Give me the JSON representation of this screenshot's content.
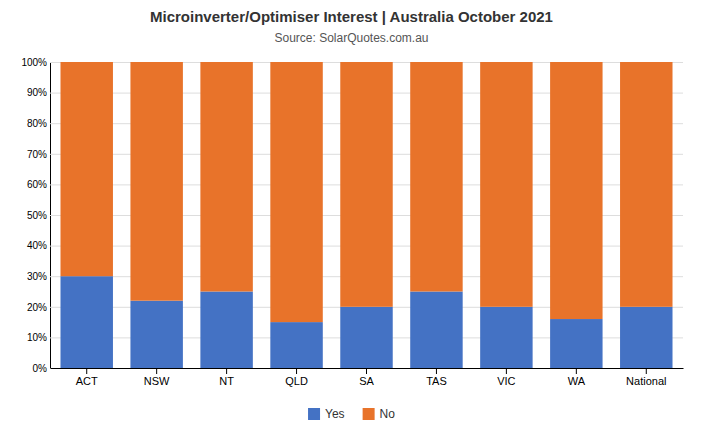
{
  "chart_data": {
    "type": "bar",
    "title": "Microinverter/Optimiser Interest | Australia October 2021",
    "subtitle": "Source: SolarQuotes.com.au",
    "categories": [
      "ACT",
      "NSW",
      "NT",
      "QLD",
      "SA",
      "TAS",
      "VIC",
      "WA",
      "National"
    ],
    "series": [
      {
        "name": "Yes",
        "color": "#4472C4",
        "values": [
          30,
          22,
          25,
          15,
          20,
          25,
          20,
          16,
          20
        ]
      },
      {
        "name": "No",
        "color": "#E8732A",
        "values": [
          70,
          78,
          75,
          85,
          80,
          75,
          80,
          84,
          80
        ]
      }
    ],
    "stacked": true,
    "ylim": [
      0,
      100
    ],
    "yticks": [
      {
        "value": 0,
        "label": "0%"
      },
      {
        "value": 10,
        "label": "10%"
      },
      {
        "value": 20,
        "label": "20%"
      },
      {
        "value": 30,
        "label": "30%"
      },
      {
        "value": 40,
        "label": "40%"
      },
      {
        "value": 50,
        "label": "50%"
      },
      {
        "value": 60,
        "label": "60%"
      },
      {
        "value": 70,
        "label": "70%"
      },
      {
        "value": 80,
        "label": "80%"
      },
      {
        "value": 90,
        "label": "90%"
      },
      {
        "value": 100,
        "label": "100%"
      }
    ],
    "grid": true,
    "legend": "bottom"
  }
}
